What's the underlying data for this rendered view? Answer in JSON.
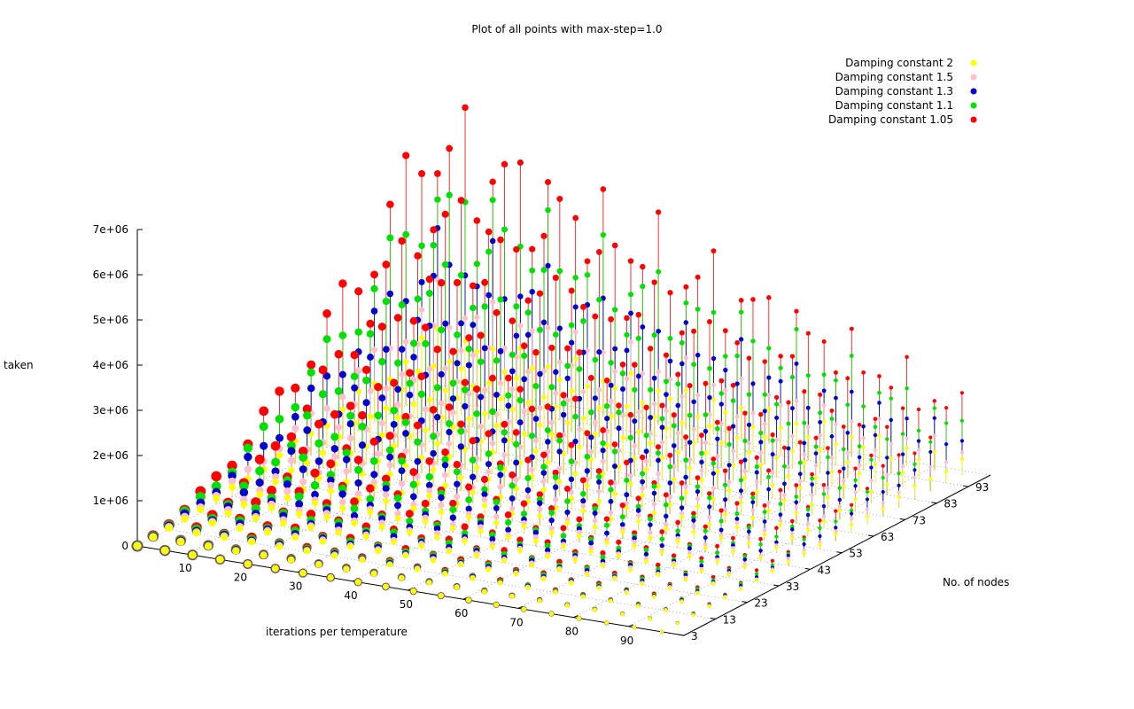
{
  "chart_data": {
    "type": "scatter3d",
    "title": "Plot of all points with max-step=1.0",
    "xlabel": "iterations per temperature",
    "ylabel": "No. of nodes",
    "zlabel": "taken",
    "x_ticks": [
      "10",
      "20",
      "30",
      "40",
      "50",
      "60",
      "70",
      "80",
      "90"
    ],
    "y_ticks": [
      "3",
      "13",
      "23",
      "33",
      "43",
      "53",
      "63",
      "73",
      "83",
      "93"
    ],
    "z_ticks": [
      "0",
      "1e+06",
      "2e+06",
      "3e+06",
      "4e+06",
      "5e+06",
      "6e+06",
      "7e+06"
    ],
    "x_range": [
      1,
      100
    ],
    "y_range": [
      3,
      100
    ],
    "z_range": [
      0,
      7000000
    ],
    "grid": "dotted base grid",
    "legend_position": "top-right",
    "sampling": {
      "x_step": 5,
      "y_step": 5
    },
    "series": [
      {
        "name": "Damping constant 2",
        "color": "#ffff00",
        "peak_z": 1500000
      },
      {
        "name": "Damping constant 1.5",
        "color": "#ffc0cb",
        "peak_z": 2500000
      },
      {
        "name": "Damping constant 1.3",
        "color": "#0000cc",
        "peak_z": 3900000
      },
      {
        "name": "Damping constant 1.1",
        "color": "#00e000",
        "peak_z": 5400000
      },
      {
        "name": "Damping constant 1.05",
        "color": "#ff0000",
        "peak_z": 7000000
      }
    ]
  }
}
